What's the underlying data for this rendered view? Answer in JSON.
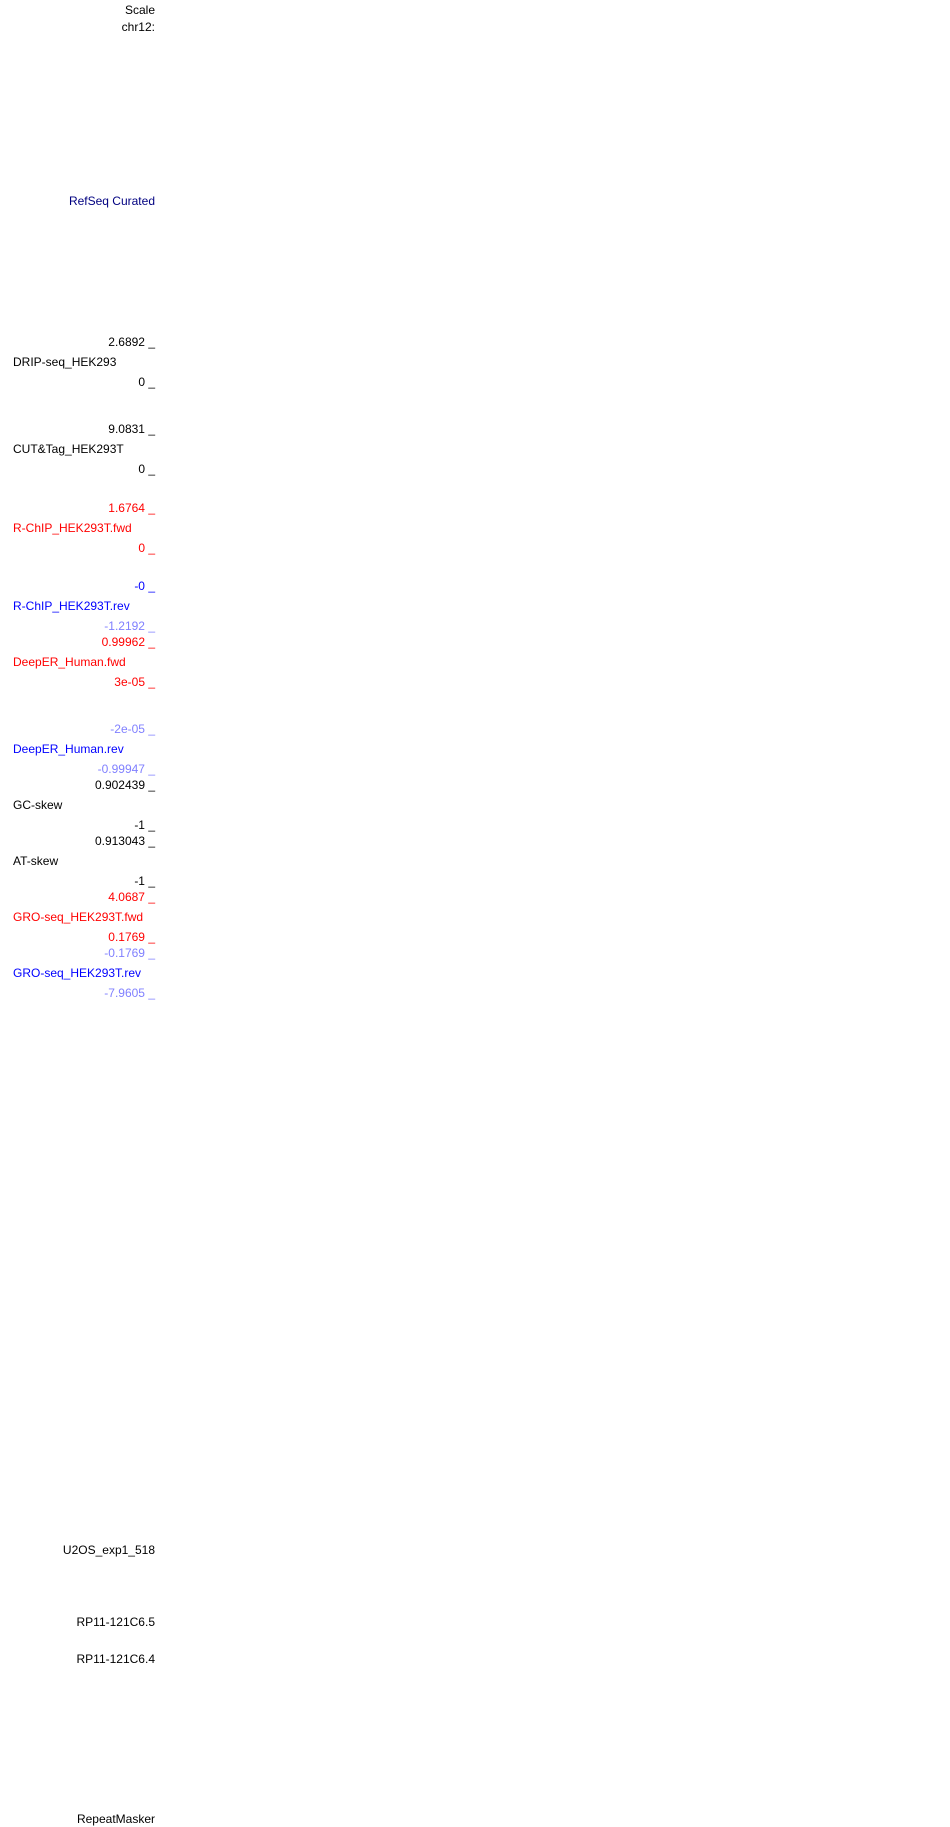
{
  "header": {
    "scale_label": "Scale",
    "chrom_label": "chr12:"
  },
  "tracks": {
    "refseq": {
      "label": "RefSeq Curated",
      "color": "#000080"
    },
    "drip": {
      "label": "DRIP-seq_HEK293",
      "max": "2.6892 _",
      "min": "0 _",
      "color": "#000000"
    },
    "cuttag": {
      "label": "CUT&Tag_HEK293T",
      "max": "9.0831 _",
      "min": "0 _",
      "color": "#000000"
    },
    "rchip_fwd": {
      "label": "R-ChIP_HEK293T.fwd",
      "max": "1.6764 _",
      "min": "0 _",
      "color": "#ff0000"
    },
    "rchip_rev": {
      "label": "R-ChIP_HEK293T.rev",
      "max": "-0 _",
      "min": "-1.2192 _",
      "color": "#0000ff",
      "min_color": "#8080ff"
    },
    "deeper_fwd": {
      "label": "DeepER_Human.fwd",
      "max": "0.99962 _",
      "min": "3e-05 _",
      "color": "#ff0000"
    },
    "deeper_rev": {
      "label": "DeepER_Human.rev",
      "max": "-2e-05 _",
      "min": "-0.99947 _",
      "color": "#0000ff",
      "range_color": "#8080ff"
    },
    "gc_skew": {
      "label": "GC-skew",
      "max": "0.902439 _",
      "min": "-1 _",
      "color": "#000000"
    },
    "at_skew": {
      "label": "AT-skew",
      "max": "0.913043 _",
      "min": "-1 _",
      "color": "#000000"
    },
    "gro_fwd": {
      "label": "GRO-seq_HEK293T.fwd",
      "max": "4.0687 _",
      "min": "0.1769 _",
      "color": "#ff0000"
    },
    "gro_rev": {
      "label": "GRO-seq_HEK293T.rev",
      "max": "-0.1769 _",
      "min": "-7.9605 _",
      "color": "#0000ff",
      "range_color": "#8080ff"
    }
  },
  "lower_labels": {
    "u2os": "U2OS_exp1_518",
    "rp11_a": "RP11-121C6.5",
    "rp11_b": "RP11-121C6.4",
    "repeatmasker": "RepeatMasker"
  }
}
